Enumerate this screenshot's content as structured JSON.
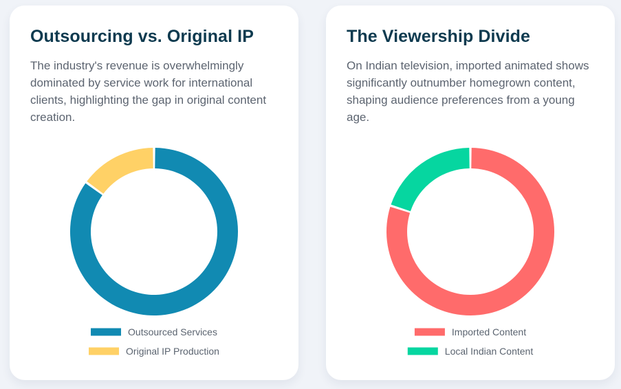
{
  "cards": [
    {
      "title": "Outsourcing vs. Original IP",
      "description": "The industry's revenue is overwhelmingly dominated by service work for international clients, highlighting the gap in original content creation."
    },
    {
      "title": "The Viewership Divide",
      "description": "On Indian television, imported animated shows significantly outnumber homegrown content, shaping audience preferences from a young age."
    }
  ],
  "chart_data": [
    {
      "type": "pie",
      "variant": "doughnut",
      "categories": [
        "Outsourced Services",
        "Original IP Production"
      ],
      "values": [
        85,
        15
      ],
      "colors": [
        "#118ab2",
        "#ffd166"
      ],
      "legend": "bottom"
    },
    {
      "type": "pie",
      "variant": "doughnut",
      "categories": [
        "Imported Content",
        "Local Indian Content"
      ],
      "values": [
        80,
        20
      ],
      "colors": [
        "#ff6b6b",
        "#06d6a0"
      ],
      "legend": "bottom"
    }
  ]
}
